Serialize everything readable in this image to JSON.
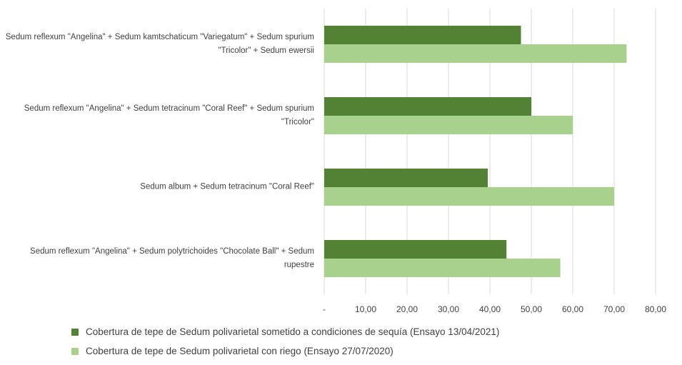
{
  "chart_data": {
    "type": "barh",
    "categories": [
      "Sedum reflexum \"Angelina\" + Sedum kamtschaticum \"Variegatum\" + Sedum spurium \"Tricolor\" + Sedum ewersii",
      "Sedum reflexum \"Angelina\" + Sedum tetracinum \"Coral Reef\" + Sedum spurium \"Tricolor\"",
      "Sedum album + Sedum tetracinum \"Coral Reef\"",
      "Sedum reflexum \"Angelina\" + Sedum polytrichoides \"Chocolate Ball\" + Sedum rupestre"
    ],
    "series": [
      {
        "name": "Cobertura de tepe de Sedum polivarietal sometido a condiciones de sequía (Ensayo 13/04/2021)",
        "color": "#548235",
        "values": [
          47.5,
          50,
          39.5,
          44
        ]
      },
      {
        "name": "Cobertura de tepe de Sedum polivarietal con riego (Ensayo 27/07/2020)",
        "color": "#a9d18e",
        "values": [
          73,
          60,
          70,
          57
        ]
      }
    ],
    "xlim": [
      0,
      80
    ],
    "xticks": [
      {
        "value": 0,
        "label": "-"
      },
      {
        "value": 10,
        "label": "10,00"
      },
      {
        "value": 20,
        "label": "20,00"
      },
      {
        "value": 30,
        "label": "30,00"
      },
      {
        "value": 40,
        "label": "40,00"
      },
      {
        "value": 50,
        "label": "50,00"
      },
      {
        "value": 60,
        "label": "60,00"
      },
      {
        "value": 70,
        "label": "70,00"
      },
      {
        "value": 80,
        "label": "80,00"
      }
    ],
    "grid": true
  }
}
